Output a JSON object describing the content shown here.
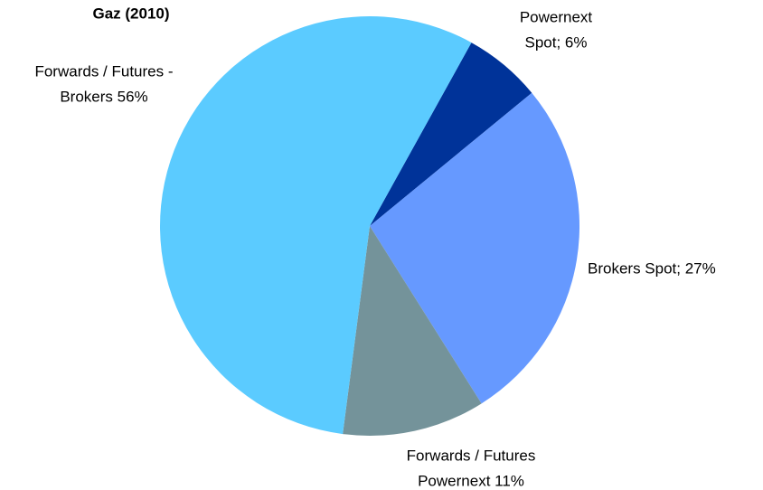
{
  "chart_data": {
    "type": "pie",
    "title": "Gaz (2010)",
    "categories": [
      "Powernext Spot",
      "Brokers Spot",
      "Forwards / Futures Powernext",
      "Forwards / Futures - Brokers"
    ],
    "values": [
      6,
      27,
      11,
      56
    ],
    "value_labels": [
      [
        "Powernext",
        "Spot; 6%"
      ],
      [
        "Brokers Spot; 27%"
      ],
      [
        "Forwards / Futures",
        "Powernext 11%"
      ],
      [
        "Forwards / Futures -",
        "Brokers 56%"
      ]
    ],
    "colors": [
      "#003399",
      "#6699ff",
      "#74939a",
      "#5bcbff"
    ]
  }
}
